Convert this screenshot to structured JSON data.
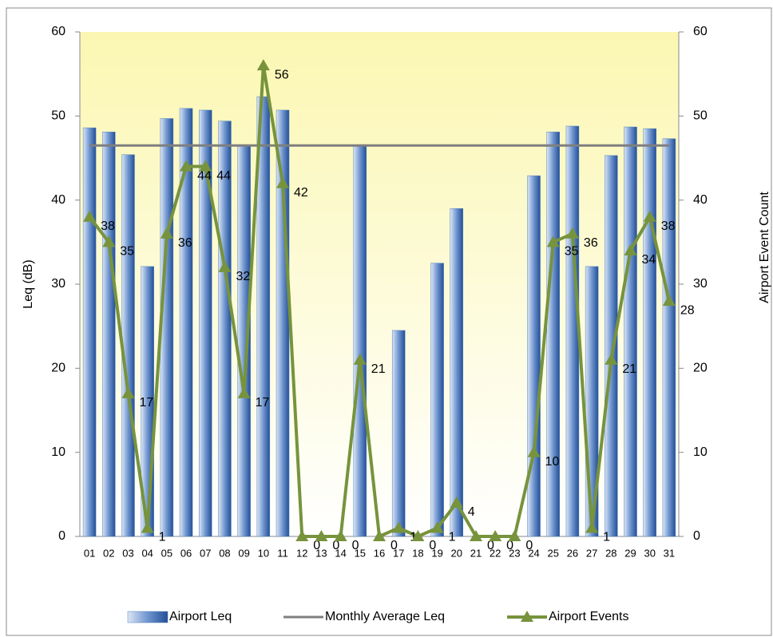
{
  "chart_data": {
    "type": "bar",
    "categories": [
      "01",
      "02",
      "03",
      "04",
      "05",
      "06",
      "07",
      "08",
      "09",
      "10",
      "11",
      "12",
      "13",
      "14",
      "15",
      "16",
      "17",
      "18",
      "19",
      "20",
      "21",
      "22",
      "23",
      "24",
      "25",
      "26",
      "27",
      "28",
      "29",
      "30",
      "31"
    ],
    "series": [
      {
        "name": "Airport Leq",
        "type": "bar",
        "color": "#4f81bd",
        "values": [
          48.6,
          48.1,
          45.4,
          32.1,
          49.7,
          50.9,
          50.7,
          49.4,
          46.4,
          52.3,
          50.7,
          null,
          null,
          null,
          46.5,
          null,
          24.5,
          null,
          32.5,
          39.0,
          null,
          null,
          null,
          42.9,
          48.1,
          48.8,
          32.1,
          45.3,
          48.7,
          48.5,
          47.3
        ]
      },
      {
        "name": "Monthly Average Leq",
        "type": "line",
        "color": "#7f7f7f",
        "values": [
          46.5,
          46.5,
          46.5,
          46.5,
          46.5,
          46.5,
          46.5,
          46.5,
          46.5,
          46.5,
          46.5,
          46.5,
          46.5,
          46.5,
          46.5,
          46.5,
          46.5,
          46.5,
          46.5,
          46.5,
          46.5,
          46.5,
          46.5,
          46.5,
          46.5,
          46.5,
          46.5,
          46.5,
          46.5,
          46.5,
          46.5
        ]
      },
      {
        "name": "Airport Events",
        "type": "line",
        "axis": "y2",
        "color": "#77933c",
        "markers": "triangle",
        "data_labels": true,
        "values": [
          38,
          35,
          17,
          1,
          36,
          44,
          44,
          32,
          17,
          56,
          42,
          0,
          0,
          0,
          21,
          0,
          1,
          0,
          1,
          4,
          0,
          0,
          0,
          10,
          35,
          36,
          1,
          21,
          34,
          38,
          28
        ]
      }
    ],
    "ylabel": "Leq (dB)",
    "y2label": "Airport Event Count",
    "ylim": [
      0,
      60
    ],
    "yticks": [
      0,
      10,
      20,
      30,
      40,
      50,
      60
    ],
    "y2lim": [
      0,
      60
    ],
    "y2ticks": [
      0,
      10,
      20,
      30,
      40,
      50,
      60
    ],
    "legend": "bottom"
  }
}
